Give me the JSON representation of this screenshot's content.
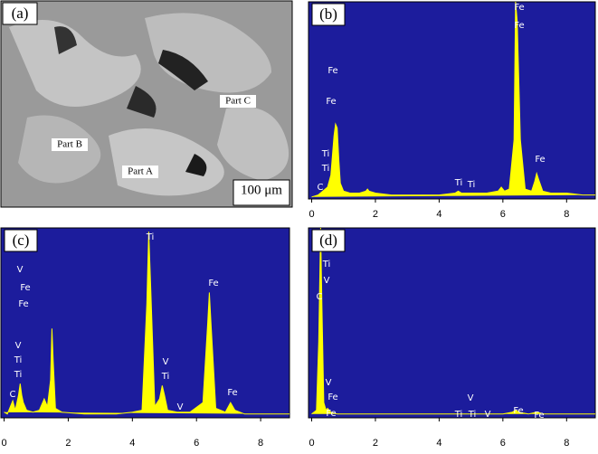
{
  "micrograph": {
    "label": "(a)",
    "annotations": [
      "Part C",
      "Part B",
      "Part A"
    ],
    "scale_bar": "100 μm"
  },
  "chart_data": [
    {
      "type": "line",
      "label": "(b)",
      "color": "#ffff00",
      "background": "#1c1c9c",
      "x": [
        0,
        0.2,
        0.35,
        0.5,
        0.6,
        0.7,
        0.75,
        0.8,
        0.85,
        0.9,
        1.0,
        1.2,
        1.5,
        1.7,
        1.75,
        1.8,
        2.0,
        2.5,
        3,
        3.5,
        4,
        4.5,
        4.6,
        4.7,
        5,
        5.5,
        5.85,
        5.95,
        6.05,
        6.2,
        6.35,
        6.4,
        6.45,
        6.55,
        6.7,
        6.9,
        7.0,
        7.06,
        7.12,
        7.25,
        7.5,
        8,
        8.5,
        8.9
      ],
      "values": [
        1,
        2,
        4,
        6,
        12,
        32,
        38,
        36,
        20,
        8,
        4,
        3,
        3,
        4,
        5,
        4,
        3,
        2,
        2,
        2,
        2,
        3,
        4,
        3,
        3,
        3,
        4,
        6,
        4,
        5,
        30,
        100,
        90,
        30,
        5,
        4,
        9,
        13,
        10,
        4,
        3,
        3,
        2,
        2
      ],
      "xlim": [
        -0.1,
        8.9
      ],
      "ylim": [
        0,
        100
      ],
      "xticks": [
        0,
        2,
        4,
        6,
        8
      ],
      "annotations": [
        "Fe",
        "Fe",
        "Fe",
        "Fe",
        "Ti",
        "Ti",
        "C",
        "Ti",
        "Ti",
        "Fe"
      ]
    },
    {
      "type": "line",
      "label": "(c)",
      "color": "#ffff00",
      "background": "#1c1c9c",
      "x": [
        0,
        0.1,
        0.27,
        0.35,
        0.45,
        0.5,
        0.55,
        0.6,
        0.7,
        0.9,
        1.1,
        1.25,
        1.35,
        1.45,
        1.49,
        1.53,
        1.6,
        1.8,
        2.5,
        3,
        3.5,
        4,
        4.3,
        4.45,
        4.51,
        4.57,
        4.7,
        4.85,
        4.93,
        5.0,
        5.1,
        5.4,
        5.8,
        6.2,
        6.35,
        6.4,
        6.45,
        6.6,
        6.9,
        7.06,
        7.2,
        7.5,
        8,
        8.5,
        8.9
      ],
      "values": [
        3,
        2,
        9,
        4,
        12,
        18,
        12,
        8,
        4,
        3,
        4,
        10,
        6,
        20,
        47,
        30,
        5,
        3,
        2,
        2,
        2,
        3,
        4,
        60,
        98,
        70,
        6,
        10,
        17,
        12,
        4,
        3,
        3,
        8,
        50,
        66,
        50,
        5,
        3,
        8,
        4,
        2,
        2,
        2,
        2
      ],
      "xlim": [
        -0.1,
        8.9
      ],
      "ylim": [
        0,
        100
      ],
      "xticks": [
        0,
        2,
        4,
        6,
        8
      ],
      "annotations": [
        "Ti",
        "V",
        "Fe",
        "Fe",
        "Fe",
        "V",
        "Ti",
        "Ti",
        "C",
        "V",
        "Ti",
        "V",
        "Fe"
      ]
    },
    {
      "type": "line",
      "label": "(d)",
      "color": "#ffff00",
      "background": "#1c1c9c",
      "x": [
        0,
        0.15,
        0.22,
        0.28,
        0.32,
        0.38,
        0.45,
        0.5,
        0.6,
        0.8,
        1.0,
        1.5,
        2,
        3,
        4,
        4.5,
        5,
        5.5,
        6,
        6.3,
        6.4,
        6.5,
        6.8,
        7.06,
        7.3,
        8,
        8.5,
        8.9
      ],
      "values": [
        2,
        4,
        40,
        100,
        60,
        8,
        4,
        5,
        3,
        2,
        2,
        2,
        2,
        2,
        2,
        2,
        2,
        2,
        2,
        3,
        4,
        3,
        2,
        3,
        2,
        2,
        2,
        2
      ],
      "xlim": [
        -0.1,
        8.9
      ],
      "ylim": [
        0,
        100
      ],
      "xticks": [
        0,
        2,
        4,
        6,
        8
      ],
      "annotations": [
        "Ti",
        "V",
        "C",
        "V",
        "Fe",
        "Fe",
        "V",
        "Ti",
        "Ti",
        "V",
        "Fe",
        "Fe"
      ]
    }
  ]
}
